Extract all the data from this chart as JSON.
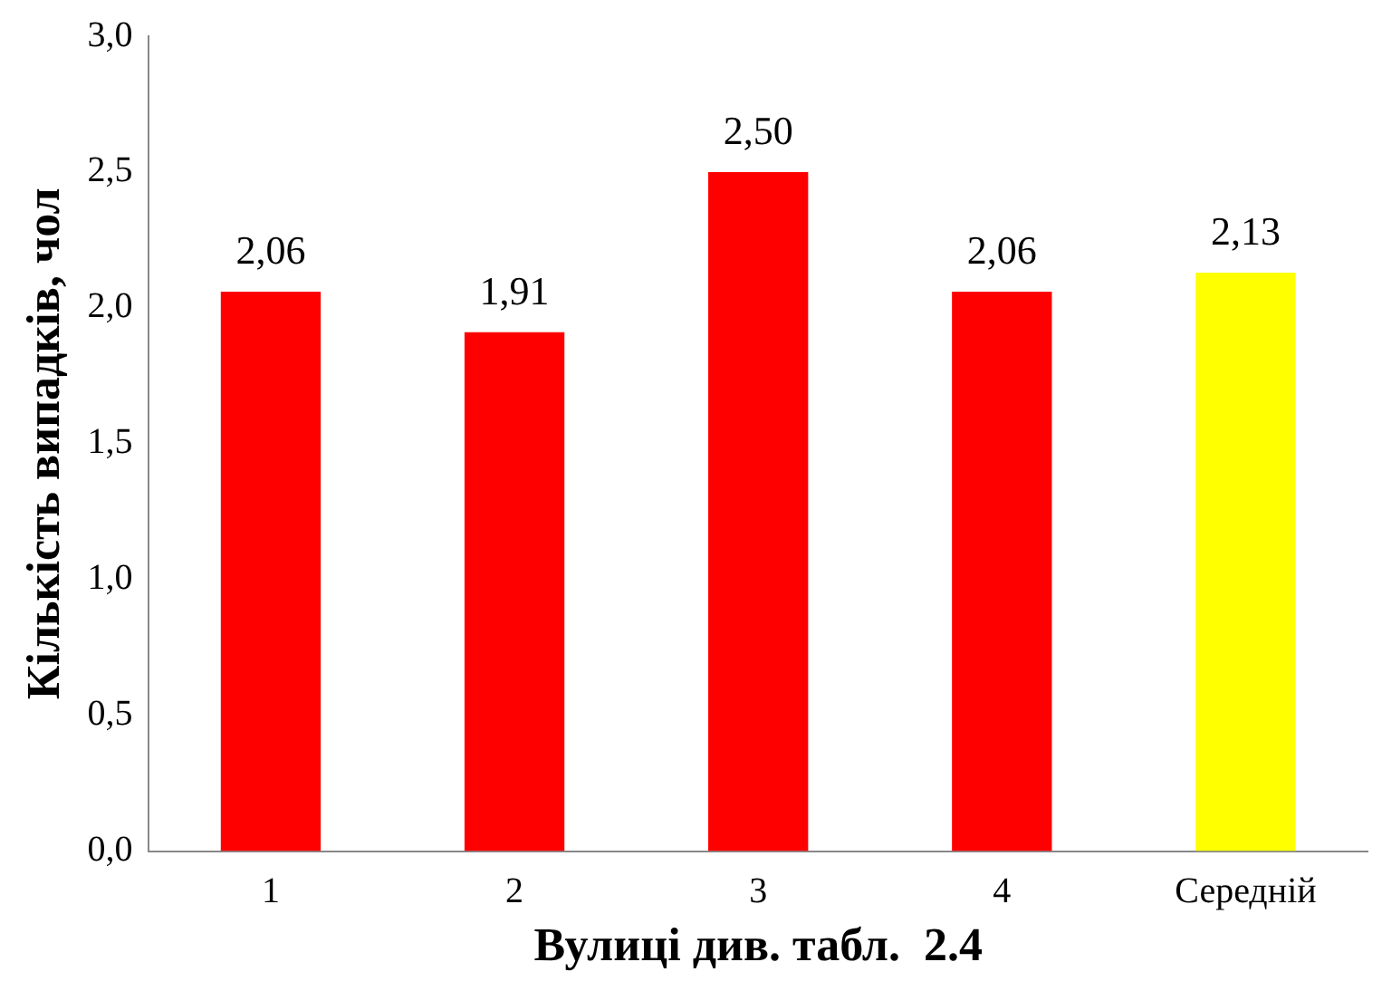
{
  "chart_data": {
    "type": "bar",
    "xlabel": "Вулиці див. табл.  2.4",
    "ylabel": "Кількість випадків, чол",
    "categories": [
      "1",
      "2",
      "3",
      "4",
      "Середній"
    ],
    "values": [
      2.06,
      1.91,
      2.5,
      2.06,
      2.13
    ],
    "colors": [
      "#ff0000",
      "#ff0000",
      "#ff0000",
      "#ff0000",
      "#ffff00"
    ],
    "value_labels": [
      "2,06",
      "1,91",
      "2,50",
      "2,06",
      "2,13"
    ],
    "ylim": [
      0,
      3
    ],
    "yticks": [
      {
        "value": 0,
        "label": "0,0"
      },
      {
        "value": 0.5,
        "label": "0,5"
      },
      {
        "value": 1,
        "label": "1,0"
      },
      {
        "value": 1.5,
        "label": "1,5"
      },
      {
        "value": 2,
        "label": "2,0"
      },
      {
        "value": 2.5,
        "label": "2,5"
      },
      {
        "value": 3,
        "label": "3,0"
      }
    ],
    "grid": false,
    "legend": false
  }
}
